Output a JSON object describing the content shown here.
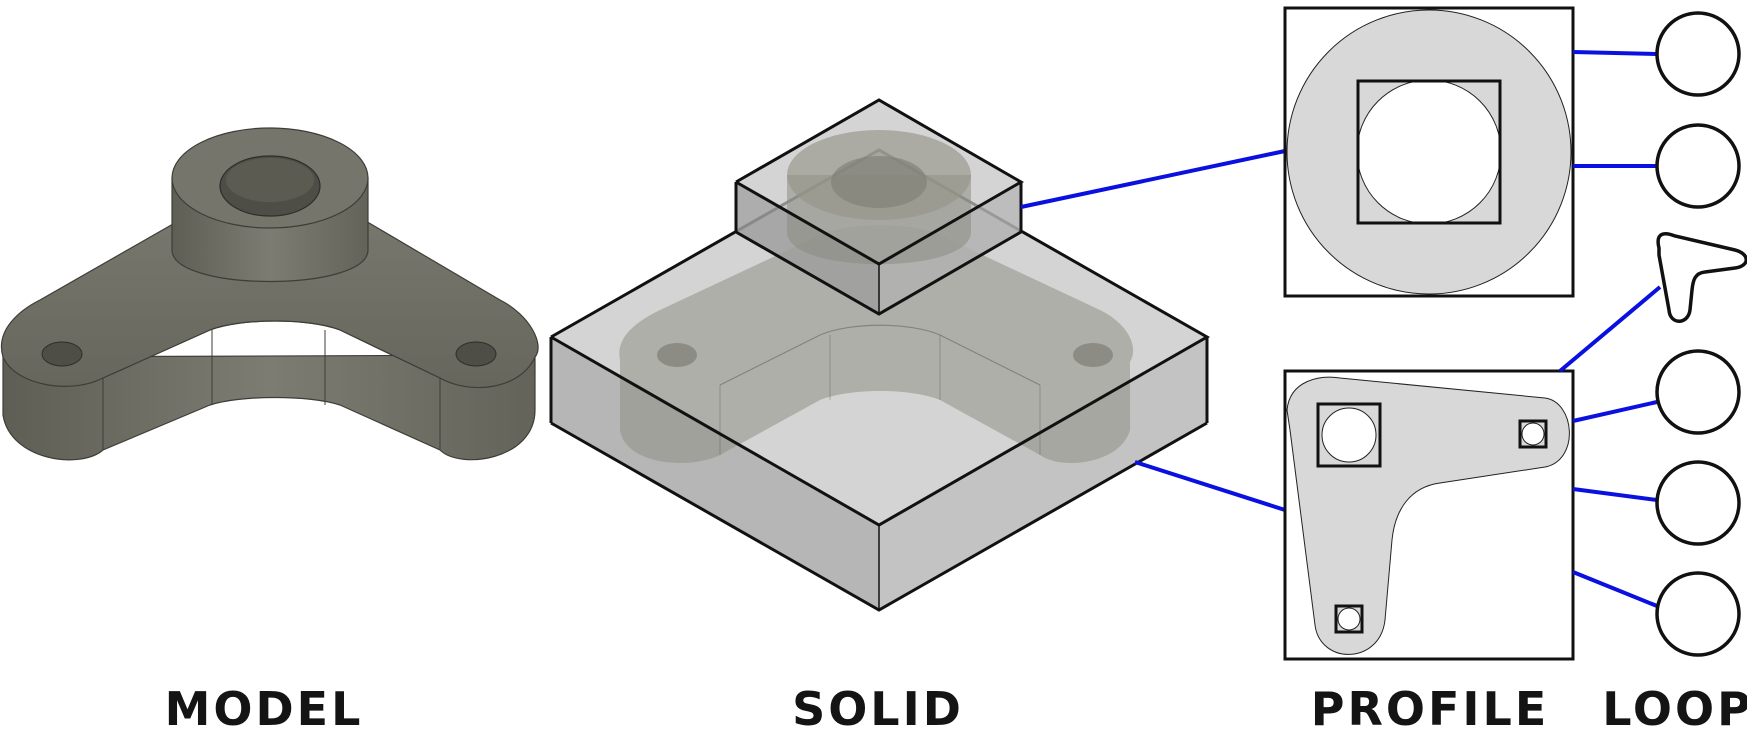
{
  "labels": {
    "model": "MODEL",
    "solid": "SOLID",
    "profile": "PROFILE",
    "loop": "LOOP"
  },
  "colors": {
    "connector": "#0a10e0",
    "outline": "#111111",
    "model_shade": "#6a6a5f",
    "profile_fill": "#d8d8d8",
    "solid_box": "#a8a8a8"
  },
  "icons": {
    "model": "3d-bracket-model",
    "solid": "extruded-solid-boxes",
    "profile": "sketch-profile",
    "loop": "closed-loop-curve"
  }
}
